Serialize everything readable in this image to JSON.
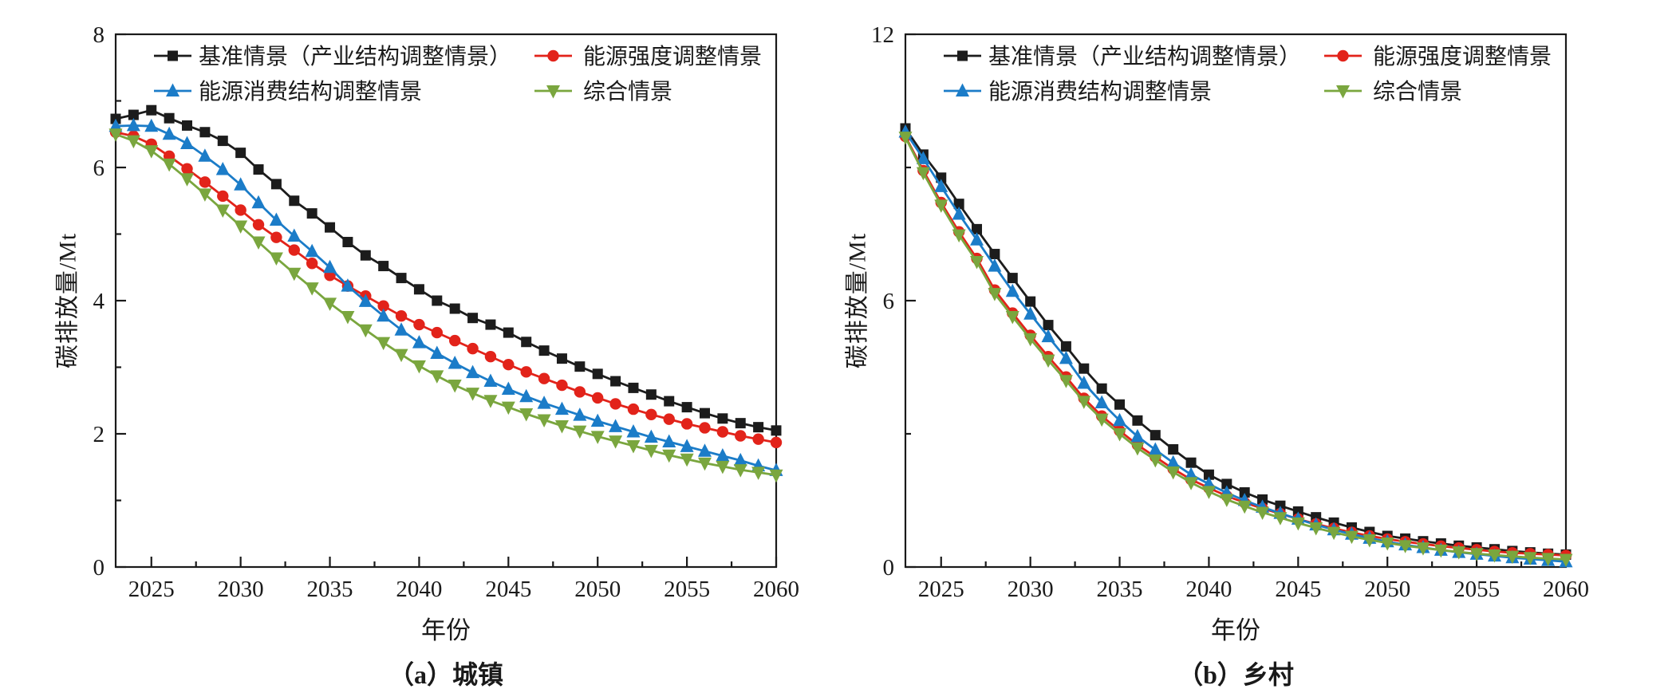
{
  "figure": {
    "background": "#ffffff",
    "text_color": "#1a1a1a"
  },
  "chart_data": [
    {
      "id": "urban",
      "type": "line",
      "caption": "（a）城镇",
      "xlabel": "年份",
      "ylabel": "碳排放量/Mt",
      "xlim": [
        2023,
        2060
      ],
      "ylim": [
        0,
        8
      ],
      "xticks": [
        2025,
        2030,
        2035,
        2040,
        2045,
        2050,
        2055,
        2060
      ],
      "yticks": [
        0,
        2,
        4,
        6,
        8
      ],
      "yticks_minor": [
        1,
        3,
        5,
        7
      ],
      "grid": false,
      "legend_position": "top-inside",
      "x": [
        2023,
        2024,
        2025,
        2026,
        2027,
        2028,
        2029,
        2030,
        2031,
        2032,
        2033,
        2034,
        2035,
        2036,
        2037,
        2038,
        2039,
        2040,
        2041,
        2042,
        2043,
        2044,
        2045,
        2046,
        2047,
        2048,
        2049,
        2050,
        2051,
        2052,
        2053,
        2054,
        2055,
        2056,
        2057,
        2058,
        2059,
        2060
      ],
      "series": [
        {
          "id": "baseline",
          "name": "基准情景（产业结构调整情景）",
          "color": "#1c1c1c",
          "marker": "square",
          "values": [
            6.73,
            6.79,
            6.86,
            6.74,
            6.63,
            6.53,
            6.4,
            6.22,
            5.97,
            5.75,
            5.5,
            5.31,
            5.1,
            4.88,
            4.68,
            4.52,
            4.34,
            4.17,
            4.0,
            3.88,
            3.74,
            3.64,
            3.52,
            3.38,
            3.25,
            3.13,
            3.01,
            2.9,
            2.79,
            2.69,
            2.59,
            2.49,
            2.4,
            2.31,
            2.23,
            2.16,
            2.1,
            2.05
          ]
        },
        {
          "id": "energy-intensity",
          "name": "能源强度调整情景",
          "color": "#e2231a",
          "marker": "circle",
          "values": [
            6.53,
            6.47,
            6.35,
            6.17,
            5.98,
            5.78,
            5.57,
            5.36,
            5.14,
            4.95,
            4.76,
            4.56,
            4.38,
            4.22,
            4.07,
            3.92,
            3.77,
            3.64,
            3.52,
            3.4,
            3.28,
            3.16,
            3.04,
            2.93,
            2.83,
            2.73,
            2.63,
            2.54,
            2.45,
            2.37,
            2.29,
            2.22,
            2.15,
            2.09,
            2.03,
            1.97,
            1.92,
            1.87
          ]
        },
        {
          "id": "energy-structure",
          "name": "能源消费结构调整情景",
          "color": "#1b7cc8",
          "marker": "triangle-up",
          "values": [
            6.62,
            6.63,
            6.62,
            6.5,
            6.36,
            6.17,
            5.97,
            5.74,
            5.47,
            5.21,
            4.97,
            4.74,
            4.5,
            4.22,
            3.99,
            3.77,
            3.56,
            3.37,
            3.21,
            3.06,
            2.92,
            2.79,
            2.67,
            2.56,
            2.46,
            2.37,
            2.28,
            2.19,
            2.11,
            2.03,
            1.95,
            1.88,
            1.81,
            1.74,
            1.67,
            1.6,
            1.52,
            1.45
          ]
        },
        {
          "id": "comprehensive",
          "name": "综合情景",
          "color": "#7aa63e",
          "marker": "triangle-down",
          "values": [
            6.5,
            6.4,
            6.25,
            6.05,
            5.83,
            5.6,
            5.36,
            5.12,
            4.88,
            4.64,
            4.41,
            4.19,
            3.96,
            3.76,
            3.56,
            3.37,
            3.19,
            3.02,
            2.87,
            2.73,
            2.61,
            2.5,
            2.4,
            2.3,
            2.21,
            2.12,
            2.04,
            1.96,
            1.89,
            1.82,
            1.75,
            1.68,
            1.62,
            1.56,
            1.51,
            1.46,
            1.42,
            1.38
          ]
        }
      ]
    },
    {
      "id": "rural",
      "type": "line",
      "caption": "（b）乡村",
      "xlabel": "年份",
      "ylabel": "碳排放量/Mt",
      "xlim": [
        2023,
        2060
      ],
      "ylim": [
        0,
        12
      ],
      "xticks": [
        2025,
        2030,
        2035,
        2040,
        2045,
        2050,
        2055,
        2060
      ],
      "yticks": [
        0,
        6,
        12
      ],
      "yticks_minor": [
        3,
        9
      ],
      "grid": false,
      "legend_position": "top-inside",
      "x": [
        2023,
        2024,
        2025,
        2026,
        2027,
        2028,
        2029,
        2030,
        2031,
        2032,
        2033,
        2034,
        2035,
        2036,
        2037,
        2038,
        2039,
        2040,
        2041,
        2042,
        2043,
        2044,
        2045,
        2046,
        2047,
        2048,
        2049,
        2050,
        2051,
        2052,
        2053,
        2054,
        2055,
        2056,
        2057,
        2058,
        2059,
        2060
      ],
      "series": [
        {
          "id": "baseline",
          "name": "基准情景（产业结构调整情景）",
          "color": "#1c1c1c",
          "marker": "square",
          "values": [
            9.88,
            9.29,
            8.77,
            8.18,
            7.61,
            7.05,
            6.51,
            5.98,
            5.45,
            4.97,
            4.47,
            4.02,
            3.66,
            3.3,
            2.97,
            2.65,
            2.35,
            2.08,
            1.87,
            1.68,
            1.52,
            1.38,
            1.25,
            1.12,
            1.0,
            0.89,
            0.79,
            0.7,
            0.64,
            0.58,
            0.53,
            0.48,
            0.44,
            0.4,
            0.36,
            0.33,
            0.3,
            0.28
          ]
        },
        {
          "id": "energy-intensity",
          "name": "能源强度调整情景",
          "color": "#e2231a",
          "marker": "circle",
          "values": [
            9.7,
            8.93,
            8.21,
            7.55,
            6.95,
            6.24,
            5.72,
            5.22,
            4.74,
            4.28,
            3.8,
            3.4,
            3.07,
            2.75,
            2.48,
            2.21,
            1.97,
            1.78,
            1.6,
            1.45,
            1.32,
            1.2,
            1.08,
            0.97,
            0.87,
            0.78,
            0.7,
            0.63,
            0.57,
            0.52,
            0.47,
            0.43,
            0.39,
            0.35,
            0.32,
            0.3,
            0.28,
            0.26
          ]
        },
        {
          "id": "energy-structure",
          "name": "能源消费结构调整情景",
          "color": "#1b7cc8",
          "marker": "triangle-up",
          "values": [
            9.8,
            9.2,
            8.57,
            7.95,
            7.37,
            6.78,
            6.21,
            5.7,
            5.19,
            4.7,
            4.14,
            3.7,
            3.3,
            2.94,
            2.64,
            2.35,
            2.08,
            1.87,
            1.67,
            1.5,
            1.35,
            1.21,
            1.08,
            0.95,
            0.84,
            0.74,
            0.65,
            0.57,
            0.5,
            0.44,
            0.38,
            0.33,
            0.29,
            0.25,
            0.21,
            0.18,
            0.15,
            0.12
          ]
        },
        {
          "id": "comprehensive",
          "name": "综合情景",
          "color": "#7aa63e",
          "marker": "triangle-down",
          "values": [
            9.68,
            8.88,
            8.15,
            7.48,
            6.88,
            6.16,
            5.64,
            5.14,
            4.66,
            4.2,
            3.73,
            3.33,
            3.0,
            2.68,
            2.41,
            2.14,
            1.9,
            1.7,
            1.52,
            1.37,
            1.23,
            1.11,
            0.99,
            0.88,
            0.78,
            0.69,
            0.61,
            0.54,
            0.48,
            0.43,
            0.38,
            0.34,
            0.3,
            0.27,
            0.24,
            0.21,
            0.19,
            0.17
          ]
        }
      ]
    }
  ]
}
